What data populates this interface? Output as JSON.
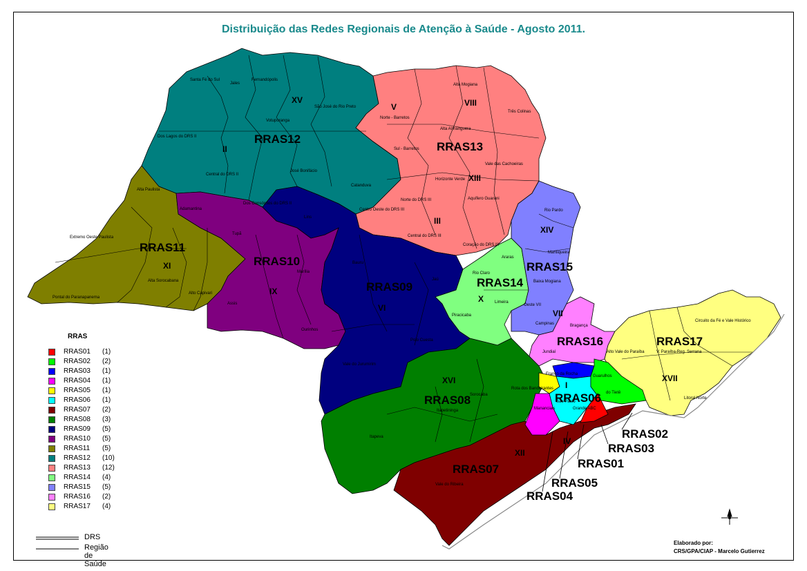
{
  "title": "Distribuição das Redes Regionais de Atenção à Saúde - Agosto 2011.",
  "legend": {
    "title": "RRAS",
    "items": [
      {
        "name": "RRAS01",
        "count": "(1)",
        "color": "#ff0000"
      },
      {
        "name": "RRAS02",
        "count": "(2)",
        "color": "#00ff00"
      },
      {
        "name": "RRAS03",
        "count": "(1)",
        "color": "#0000ff"
      },
      {
        "name": "RRAS04",
        "count": "(1)",
        "color": "#ff00ff"
      },
      {
        "name": "RRAS05",
        "count": "(1)",
        "color": "#ffff00"
      },
      {
        "name": "RRAS06",
        "count": "(1)",
        "color": "#00ffff"
      },
      {
        "name": "RRAS07",
        "count": "(2)",
        "color": "#7f0000"
      },
      {
        "name": "RRAS08",
        "count": "(3)",
        "color": "#007f00"
      },
      {
        "name": "RRAS09",
        "count": "(5)",
        "color": "#00007f"
      },
      {
        "name": "RRAS10",
        "count": "(5)",
        "color": "#7f007f"
      },
      {
        "name": "RRAS11",
        "count": "(5)",
        "color": "#7f7f00"
      },
      {
        "name": "RRAS12",
        "count": "(10)",
        "color": "#007f7f"
      },
      {
        "name": "RRAS13",
        "count": "(12)",
        "color": "#ff8080"
      },
      {
        "name": "RRAS14",
        "count": "(4)",
        "color": "#80ff80"
      },
      {
        "name": "RRAS15",
        "count": "(5)",
        "color": "#8080ff"
      },
      {
        "name": "RRAS16",
        "count": "(2)",
        "color": "#ff80ff"
      },
      {
        "name": "RRAS17",
        "count": "(4)",
        "color": "#ffff80"
      }
    ]
  },
  "lines_legend": {
    "drs": "DRS",
    "regiao": "Região de Saúde"
  },
  "credit": {
    "line1": "Elaborado por:",
    "line2": "CRS/GPA/CIAP - Marcelo Gutierrez"
  },
  "map_labels": {
    "rras12": "RRAS12",
    "rras13": "RRAS13",
    "rras11": "RRAS11",
    "rras10": "RRAS10",
    "rras09": "RRAS09",
    "rras14": "RRAS14",
    "rras15": "RRAS15",
    "rras16": "RRAS16",
    "rras17": "RRAS17",
    "rras08": "RRAS08",
    "rras06": "RRAS06",
    "rras07": "RRAS07",
    "rras02": "RRAS02",
    "rras03": "RRAS03",
    "rras01": "RRAS01",
    "rras05": "RRAS05",
    "rras04": "RRAS04",
    "xv": "XV",
    "ii": "II",
    "v": "V",
    "viii": "VIII",
    "xiii": "XIII",
    "iii": "III",
    "xi": "XI",
    "ix": "IX",
    "vi": "VI",
    "xiv": "XIV",
    "x": "X",
    "vii": "VII",
    "xvii": "XVII",
    "xvi": "XVI",
    "i": "I",
    "iv": "IV",
    "xii": "XII",
    "santa_fe": "Santa Fé do Sul",
    "jales": "Jales",
    "fernandopolis": "Fernandópolis",
    "votuporanga": "Votuporanga",
    "sao_jose_rio_preto": "São José do Rio Preto",
    "dos_lagos": "Dos Lagos do DRS II",
    "central_drs_ii": "Central do DRS II",
    "jose_bonifacio": "José Bonifácio",
    "catanduva": "Catanduva",
    "dos_consorcios": "Dos Consórcios do DRS II",
    "alta_mogiana": "Alta Mogiana",
    "norte_barretos": "Norte - Barretos",
    "tres_colinas": "Três Colinas",
    "alta_anhanguera": "Alta Anhanguera",
    "sul_barretos": "Sul - Barretos",
    "vale_cachoeiras": "Vale das Cachoeiras",
    "horizonte_verde": "Horizonte Verde",
    "aquifero_guarani": "Aquífero Guarani",
    "norte_drs_iii": "Norte do DRS III",
    "centro_oeste_drs_iii": "Centro Oeste do DRS III",
    "central_drs_iii": "Central do DRS III",
    "coracao_drs_iii": "Coração do DRS III",
    "alta_paulista": "Alta Paulista",
    "extremo_oeste": "Extremo Oeste Paulista",
    "alta_sorocabana": "Alta Sorocabana",
    "pontal": "Pontal do Paranapanema",
    "alto_capivari": "Alto Capivari",
    "adamantina": "Adamantina",
    "tupa": "Tupã",
    "lins": "Lins",
    "marilia": "Marília",
    "assis": "Assis",
    "ourinhos": "Ourinhos",
    "bauru": "Bauru",
    "jau": "Jaú",
    "polo_cuesta": "Polo Cuesta",
    "vale_jurumirim": "Vale do Jurumirim",
    "rio_pardo": "Rio Pardo",
    "mantiqueira": "Mantiqueira",
    "araras": "Araras",
    "rio_claro": "Rio Claro",
    "baixa_mogiana": "Baixa Mogiana",
    "limeira": "Limeira",
    "piracicaba": "Piracicaba",
    "oeste_vii": "Oeste VII",
    "campinas": "Campinas",
    "braganca": "Bragança",
    "jundiai": "Jundiaí",
    "alto_vale_paraiba": "Alto Vale do Paraíba",
    "v_paraiba_serrana": "V. Paraíba-Reg. Serrana",
    "circuito_fe": "Circuito da Fé e Vale Histórico",
    "litoral_norte": "Litoral Norte",
    "franco_rocha": "Franco da Rocha",
    "guarulhos": "Guarulhos",
    "alto_tiete": "do Tietê",
    "rota_bandeirantes": "Rota dos Bandeirantes",
    "sorocaba": "Sorocaba",
    "itapetininga": "Itapetininga",
    "itapeva": "Itapeva",
    "sao_paulo": "São Paulo",
    "mananciais": "Mananciais",
    "grande_abc": "Grande ABC",
    "vale_ribeira": "Vale do Ribeira"
  }
}
